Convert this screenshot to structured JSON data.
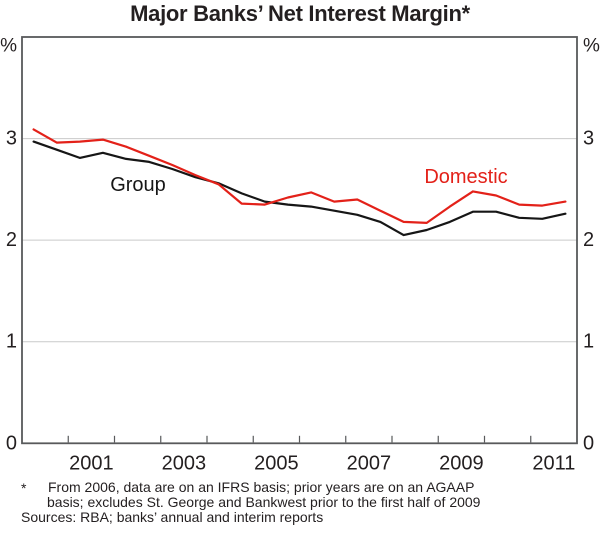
{
  "page": {
    "title": "Major Banks’ Net Interest Margin*"
  },
  "chart_data": {
    "type": "line",
    "title": "Major Banks’ Net Interest Margin*",
    "frequency": "half-yearly",
    "unit_label": "%",
    "x_periods": [
      "2000 H1",
      "2000 H2",
      "2001 H1",
      "2001 H2",
      "2002 H1",
      "2002 H2",
      "2003 H1",
      "2003 H2",
      "2004 H1",
      "2004 H2",
      "2005 H1",
      "2005 H2",
      "2006 H1",
      "2006 H2",
      "2007 H1",
      "2007 H2",
      "2008 H1",
      "2008 H2",
      "2009 H1",
      "2009 H2",
      "2010 H1",
      "2010 H2",
      "2011 H1",
      "2011 H2"
    ],
    "series": [
      {
        "name": "Group",
        "color": "#161616",
        "values": [
          2.97,
          2.89,
          2.81,
          2.86,
          2.8,
          2.77,
          2.7,
          2.62,
          2.56,
          2.46,
          2.38,
          2.35,
          2.33,
          2.29,
          2.25,
          2.18,
          2.05,
          2.1,
          2.18,
          2.28,
          2.28,
          2.22,
          2.21,
          2.26
        ]
      },
      {
        "name": "Domestic",
        "color": "#e32119",
        "values": [
          3.09,
          2.96,
          2.97,
          2.99,
          2.92,
          2.83,
          2.74,
          2.64,
          2.55,
          2.36,
          2.35,
          2.42,
          2.47,
          2.38,
          2.4,
          2.29,
          2.18,
          2.17,
          2.33,
          2.48,
          2.44,
          2.35,
          2.34,
          2.38
        ]
      }
    ],
    "x_axis": {
      "start_year": 2000,
      "end_year": 2012,
      "tick_every_years": 1,
      "label_years": [
        "2001",
        "2003",
        "2005",
        "2007",
        "2009",
        "2011"
      ]
    },
    "y_axis": {
      "min": 0,
      "max": 4,
      "gridlines": [
        1,
        2,
        3
      ],
      "tick_labels": [
        "3",
        "2",
        "1",
        "0"
      ],
      "labels_on_both_sides": true,
      "unit_label_left": "%",
      "unit_label_right": "%"
    },
    "legend_position": "inline-annotations"
  },
  "annotations": [
    {
      "text": "Group",
      "color": "#161616"
    },
    {
      "text": "Domestic",
      "color": "#e32119"
    }
  ],
  "footnote": {
    "marker": "*",
    "lines": [
      "From 2006, data are on an IFRS basis; prior years are on an AGAAP",
      "basis; excludes St. George and Bankwest prior to the first half of 2009"
    ]
  },
  "sources": "Sources: RBA; banks’ annual and interim reports"
}
